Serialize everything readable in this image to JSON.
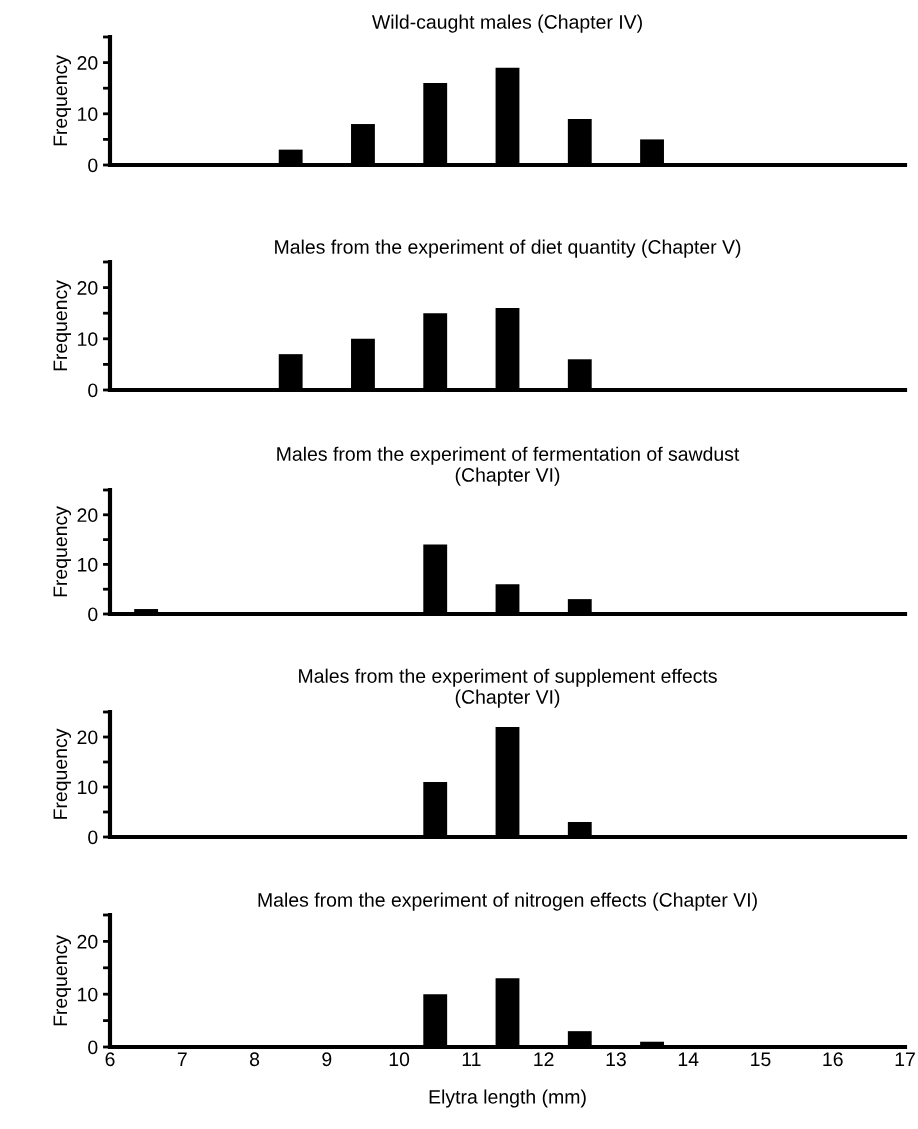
{
  "chart_data": [
    {
      "type": "bar",
      "title": "Wild-caught males (Chapter IV)",
      "ylabel": "Frequency",
      "x": [
        8.5,
        9.5,
        10.5,
        11.5,
        12.5,
        13.5
      ],
      "values": [
        3,
        8,
        16,
        19,
        9,
        5
      ],
      "color": "#000000",
      "xlim": [
        6,
        17
      ],
      "ylim": [
        0,
        25
      ],
      "yticks": [
        0,
        {
          "value": 5,
          "label": null
        },
        10,
        {
          "value": 15,
          "label": null
        },
        20,
        {
          "value": 25,
          "label": null
        }
      ],
      "tick_labels": "y",
      "grid": false,
      "legend": false
    },
    {
      "type": "bar",
      "title": "Males from the experiment of diet quantity (Chapter V)",
      "ylabel": "Frequency",
      "x": [
        8.5,
        9.5,
        10.5,
        11.5,
        12.5
      ],
      "values": [
        7,
        10,
        15,
        16,
        6
      ],
      "color": "#000000",
      "xlim": [
        6,
        17
      ],
      "ylim": [
        0,
        25
      ],
      "yticks": [
        0,
        {
          "value": 5,
          "label": null
        },
        10,
        {
          "value": 15,
          "label": null
        },
        20,
        {
          "value": 25,
          "label": null
        }
      ],
      "tick_labels": "y",
      "grid": false,
      "legend": false
    },
    {
      "type": "bar",
      "title": "Males from the experiment of fermentation of sawdust\n(Chapter VI)",
      "ylabel": "Frequency",
      "x": [
        6.5,
        10.5,
        11.5,
        12.5
      ],
      "values": [
        1,
        14,
        6,
        3
      ],
      "color": "#000000",
      "xlim": [
        6,
        17
      ],
      "ylim": [
        0,
        25
      ],
      "yticks": [
        0,
        {
          "value": 5,
          "label": null
        },
        10,
        {
          "value": 15,
          "label": null
        },
        20,
        {
          "value": 25,
          "label": null
        }
      ],
      "tick_labels": "y",
      "grid": false,
      "legend": false
    },
    {
      "type": "bar",
      "title": "Males from the experiment of supplement effects\n(Chapter VI)",
      "ylabel": "Frequency",
      "x": [
        10.5,
        11.5,
        12.5
      ],
      "values": [
        11,
        22,
        3
      ],
      "color": "#000000",
      "xlim": [
        6,
        17
      ],
      "ylim": [
        0,
        25
      ],
      "yticks": [
        0,
        {
          "value": 5,
          "label": null
        },
        10,
        {
          "value": 15,
          "label": null
        },
        20,
        {
          "value": 25,
          "label": null
        }
      ],
      "tick_labels": "y",
      "grid": false,
      "legend": false
    },
    {
      "type": "bar",
      "title": "Males from the experiment of nitrogen effects (Chapter VI)",
      "ylabel": "Frequency",
      "xlabel": "Elytra length (mm)",
      "x": [
        10.5,
        11.5,
        12.5,
        13.5
      ],
      "values": [
        10,
        13,
        3,
        1
      ],
      "color": "#000000",
      "xlim": [
        6,
        17
      ],
      "xticks": [
        6,
        7,
        8,
        9,
        10,
        11,
        12,
        13,
        14,
        15,
        16,
        17
      ],
      "ylim": [
        0,
        25
      ],
      "yticks": [
        0,
        {
          "value": 5,
          "label": null
        },
        10,
        {
          "value": 15,
          "label": null
        },
        20,
        {
          "value": 25,
          "label": null
        }
      ],
      "grid": false,
      "legend": false
    }
  ]
}
